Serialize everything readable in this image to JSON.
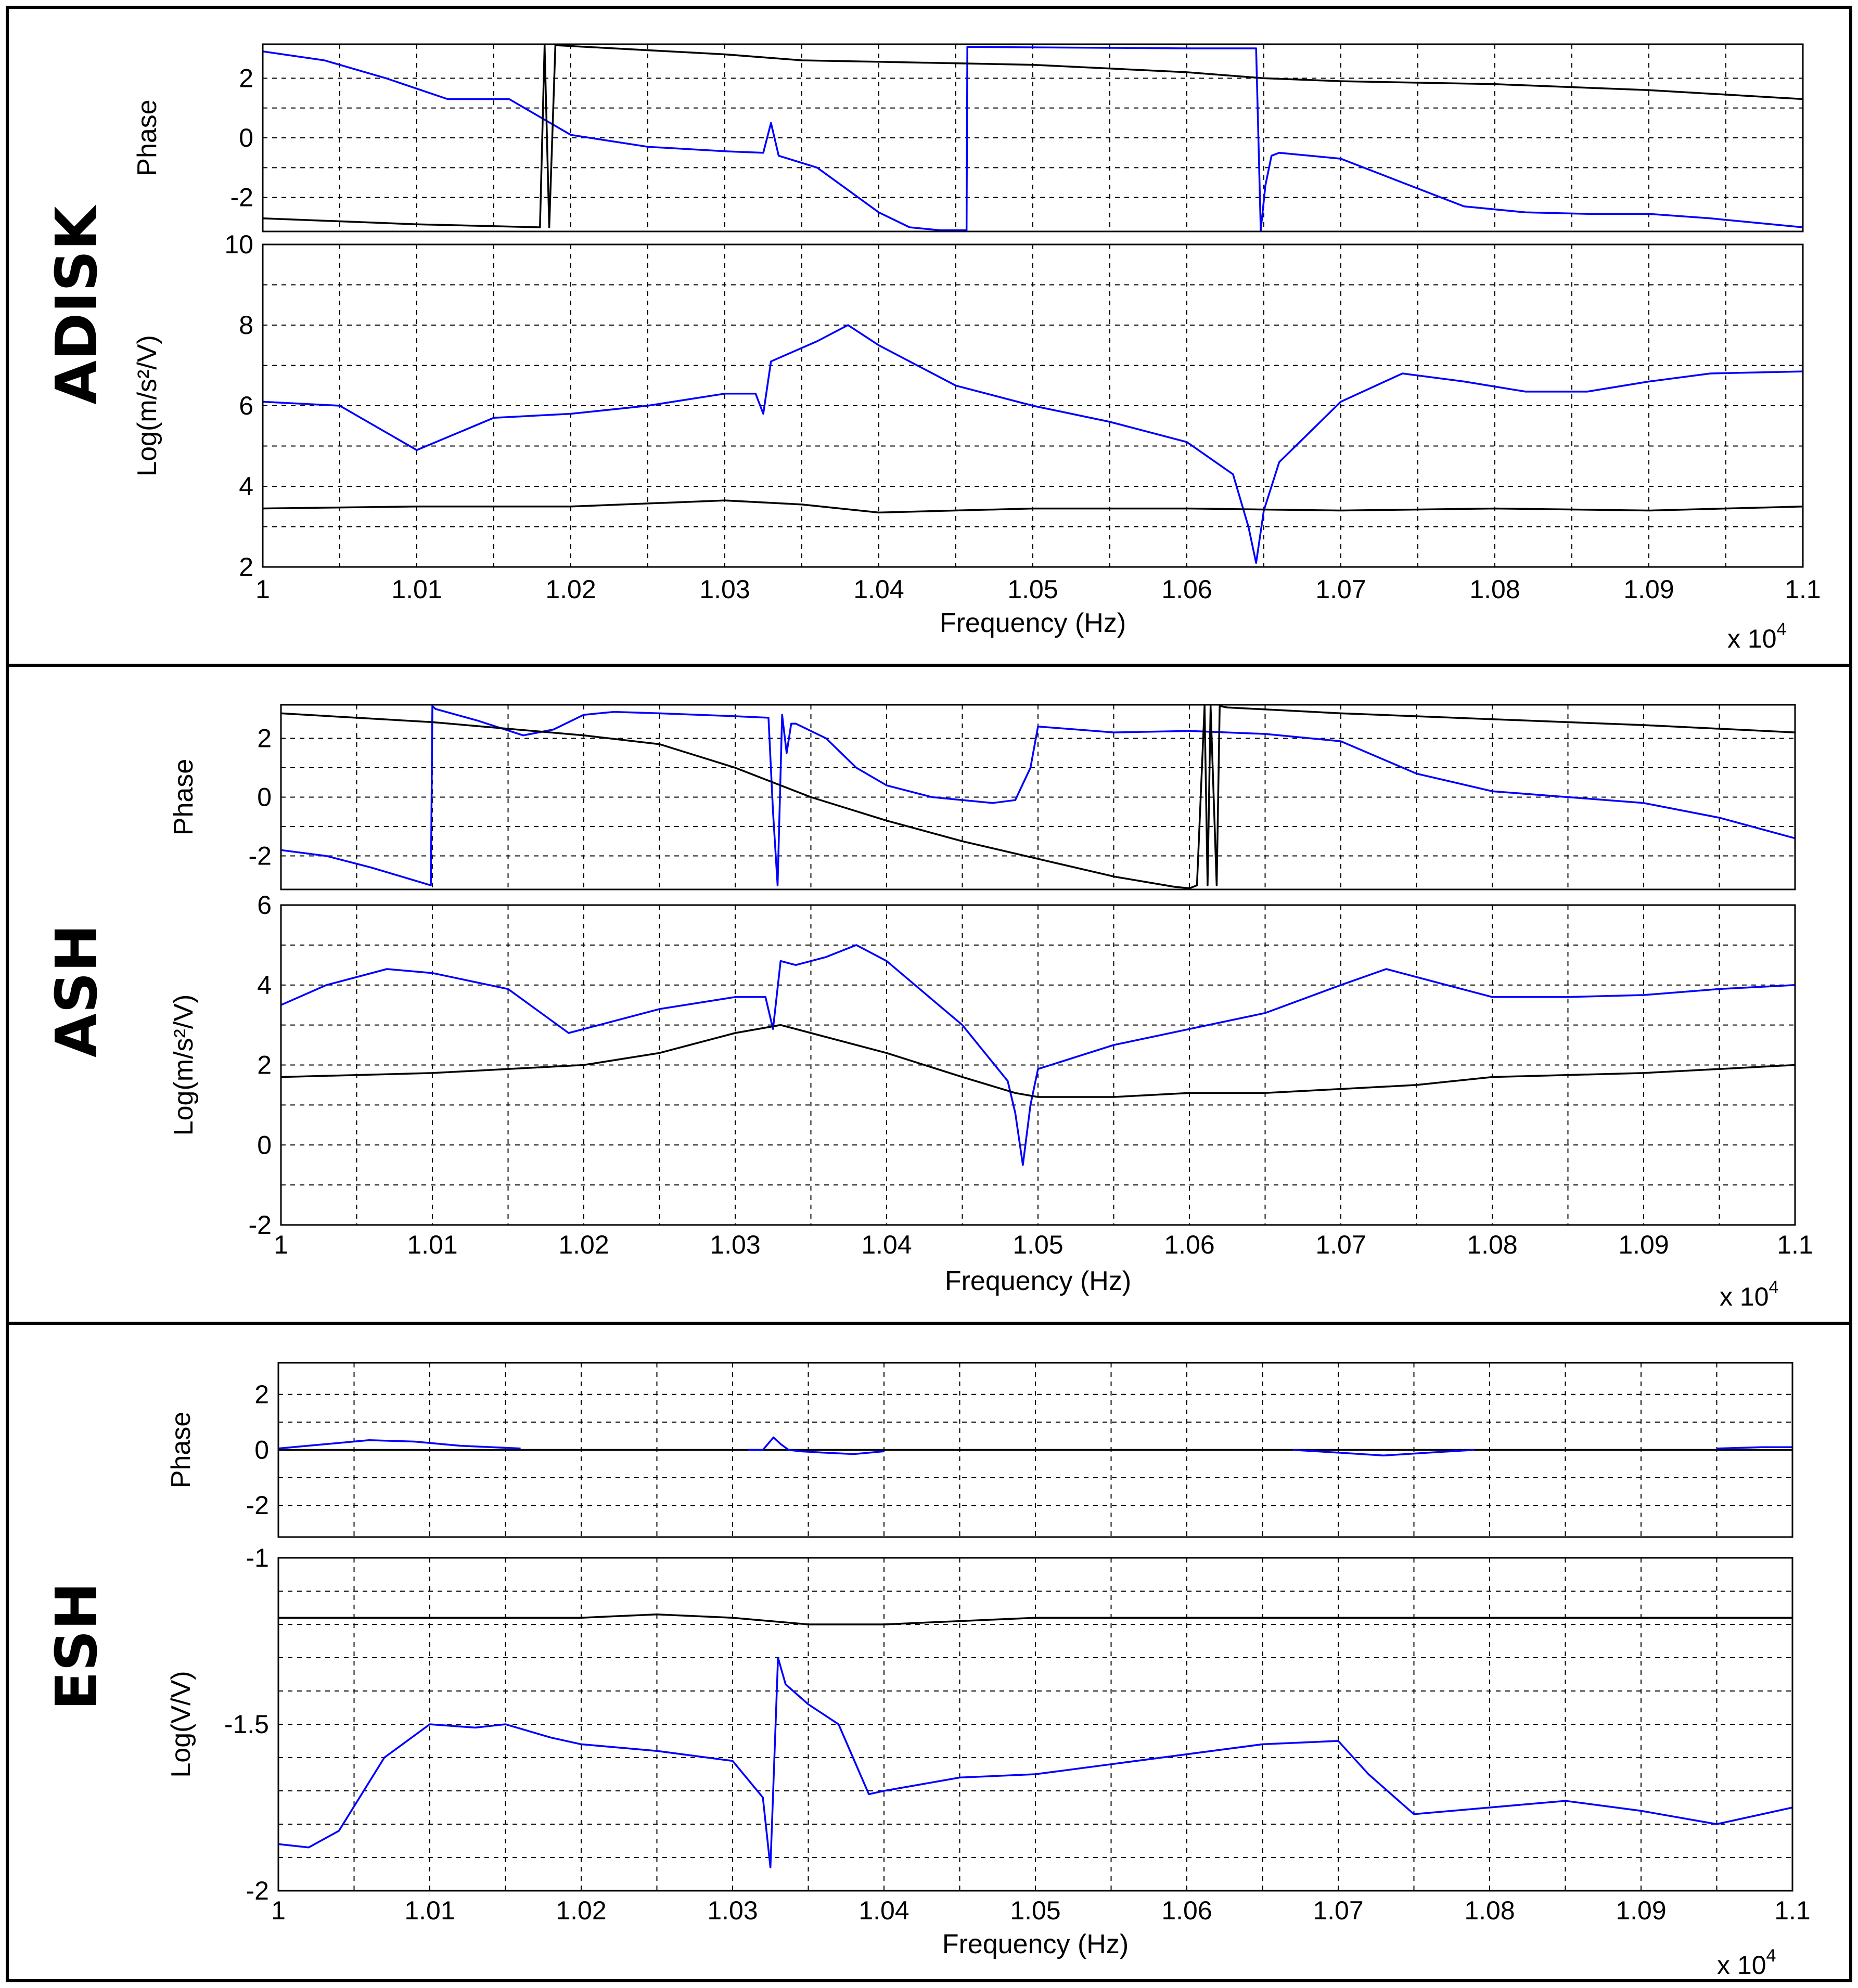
{
  "chart_data": [
    {
      "type": "line",
      "panel": "ADISK",
      "xlabel": "Frequency (Hz)",
      "x_multiplier": "x 10",
      "x_multiplier_exp": "4",
      "xlim": [
        1.0,
        1.1
      ],
      "xticks": [
        "1",
        "1.01",
        "1.02",
        "1.03",
        "1.04",
        "1.05",
        "1.06",
        "1.07",
        "1.08",
        "1.09",
        "1.1"
      ],
      "phase": {
        "ylabel": "Phase",
        "ylim": [
          -3.14,
          3.14
        ],
        "yticks": [
          "2",
          "0",
          "-2"
        ],
        "series": [
          {
            "name": "blue",
            "color": "#0000ff",
            "x": [
              1.0,
              1.004,
              1.008,
              1.012,
              1.016,
              1.02,
              1.025,
              1.03,
              1.0325,
              1.033,
              1.0335,
              1.036,
              1.04,
              1.042,
              1.044,
              1.0457,
              1.04575,
              1.0458,
              1.046,
              1.06,
              1.0645,
              1.0648,
              1.0651,
              1.0655,
              1.066,
              1.07,
              1.074,
              1.078,
              1.082,
              1.086,
              1.09,
              1.094,
              1.098,
              1.1
            ],
            "y": [
              2.9,
              2.6,
              2.0,
              1.3,
              1.3,
              0.1,
              -0.3,
              -0.45,
              -0.5,
              0.5,
              -0.6,
              -1.0,
              -2.5,
              -3.0,
              -3.1,
              -3.1,
              3.05,
              3.05,
              3.05,
              3.0,
              3.0,
              -3.1,
              -1.6,
              -0.6,
              -0.5,
              -0.7,
              -1.5,
              -2.3,
              -2.5,
              -2.55,
              -2.55,
              -2.7,
              -2.9,
              -3.0
            ]
          },
          {
            "name": "black",
            "color": "#000000",
            "x": [
              1.0,
              1.01,
              1.018,
              1.0183,
              1.0186,
              1.019,
              1.0192,
              1.03,
              1.035,
              1.04,
              1.05,
              1.06,
              1.065,
              1.07,
              1.08,
              1.09,
              1.1
            ],
            "y": [
              -2.7,
              -2.9,
              -3.0,
              3.1,
              -3.0,
              3.1,
              3.1,
              2.8,
              2.6,
              2.55,
              2.45,
              2.2,
              2.0,
              1.9,
              1.8,
              1.6,
              1.3
            ]
          }
        ]
      },
      "magnitude": {
        "ylabel": "Log(m/s²/V)",
        "ylim": [
          2,
          10
        ],
        "yticks": [
          "10",
          "8",
          "6",
          "4",
          "2"
        ],
        "series": [
          {
            "name": "blue",
            "color": "#0000ff",
            "x": [
              1.0,
              1.005,
              1.01,
              1.015,
              1.02,
              1.025,
              1.03,
              1.032,
              1.0325,
              1.033,
              1.036,
              1.038,
              1.04,
              1.045,
              1.05,
              1.055,
              1.06,
              1.063,
              1.064,
              1.0645,
              1.065,
              1.066,
              1.07,
              1.074,
              1.078,
              1.082,
              1.086,
              1.09,
              1.094,
              1.1
            ],
            "y": [
              6.1,
              6.0,
              4.9,
              5.7,
              5.8,
              6.0,
              6.3,
              6.3,
              5.8,
              7.1,
              7.6,
              8.0,
              7.5,
              6.5,
              6.0,
              5.6,
              5.1,
              4.3,
              3.0,
              2.1,
              3.4,
              4.6,
              6.1,
              6.8,
              6.6,
              6.35,
              6.35,
              6.6,
              6.8,
              6.85
            ]
          },
          {
            "name": "black",
            "color": "#000000",
            "x": [
              1.0,
              1.01,
              1.02,
              1.03,
              1.035,
              1.04,
              1.05,
              1.06,
              1.07,
              1.08,
              1.09,
              1.1
            ],
            "y": [
              3.45,
              3.5,
              3.5,
              3.65,
              3.55,
              3.35,
              3.45,
              3.45,
              3.4,
              3.45,
              3.4,
              3.5
            ]
          }
        ]
      }
    },
    {
      "type": "line",
      "panel": "ASH",
      "xlabel": "Frequency (Hz)",
      "x_multiplier": "x 10",
      "x_multiplier_exp": "4",
      "xlim": [
        1.0,
        1.1
      ],
      "xticks": [
        "1",
        "1.01",
        "1.02",
        "1.03",
        "1.04",
        "1.05",
        "1.06",
        "1.07",
        "1.08",
        "1.09",
        "1.1"
      ],
      "phase": {
        "ylabel": "Phase",
        "ylim": [
          -3.14,
          3.14
        ],
        "yticks": [
          "2",
          "0",
          "-2"
        ],
        "series": [
          {
            "name": "blue",
            "color": "#0000ff",
            "x": [
              1.0,
              1.003,
              1.006,
              1.0099,
              1.01,
              1.0102,
              1.013,
              1.016,
              1.018,
              1.02,
              1.022,
              1.025,
              1.03,
              1.0322,
              1.0325,
              1.0328,
              1.0331,
              1.0334,
              1.0337,
              1.034,
              1.036,
              1.038,
              1.04,
              1.043,
              1.047,
              1.0485,
              1.0495,
              1.05,
              1.055,
              1.06,
              1.065,
              1.07,
              1.075,
              1.08,
              1.085,
              1.09,
              1.095,
              1.1
            ],
            "y": [
              -1.8,
              -2.0,
              -2.4,
              -3.0,
              3.1,
              3.0,
              2.6,
              2.1,
              2.3,
              2.8,
              2.9,
              2.85,
              2.75,
              2.7,
              -0.5,
              -3.0,
              2.8,
              1.5,
              2.5,
              2.5,
              2.0,
              1.0,
              0.4,
              0.0,
              -0.2,
              -0.1,
              1.0,
              2.4,
              2.2,
              2.25,
              2.15,
              1.9,
              0.8,
              0.2,
              0.0,
              -0.2,
              -0.7,
              -1.4
            ]
          },
          {
            "name": "black",
            "color": "#000000",
            "x": [
              1.0,
              1.01,
              1.02,
              1.025,
              1.03,
              1.035,
              1.04,
              1.045,
              1.05,
              1.055,
              1.059,
              1.06,
              1.0605,
              1.061,
              1.0612,
              1.0614,
              1.0618,
              1.062,
              1.0625,
              1.07,
              1.08,
              1.09,
              1.1
            ],
            "y": [
              2.85,
              2.55,
              2.1,
              1.8,
              1.0,
              0.0,
              -0.8,
              -1.5,
              -2.1,
              -2.7,
              -3.05,
              -3.1,
              -3.0,
              3.1,
              -3.0,
              3.1,
              -3.0,
              3.1,
              3.05,
              2.85,
              2.65,
              2.45,
              2.2
            ]
          }
        ]
      },
      "magnitude": {
        "ylabel": "Log(m/s²/V)",
        "ylim": [
          -2,
          6
        ],
        "yticks": [
          "6",
          "4",
          "2",
          "0",
          "-2"
        ],
        "series": [
          {
            "name": "blue",
            "color": "#0000ff",
            "x": [
              1.0,
              1.003,
              1.007,
              1.01,
              1.015,
              1.019,
              1.02,
              1.025,
              1.03,
              1.032,
              1.0325,
              1.033,
              1.034,
              1.036,
              1.038,
              1.04,
              1.045,
              1.048,
              1.0485,
              1.049,
              1.0495,
              1.05,
              1.055,
              1.06,
              1.065,
              1.07,
              1.073,
              1.077,
              1.08,
              1.085,
              1.09,
              1.095,
              1.1
            ],
            "y": [
              3.5,
              4.0,
              4.4,
              4.3,
              3.9,
              2.8,
              2.9,
              3.4,
              3.7,
              3.7,
              2.9,
              4.6,
              4.5,
              4.7,
              5.0,
              4.6,
              3.0,
              1.6,
              0.8,
              -0.5,
              1.0,
              1.9,
              2.5,
              2.9,
              3.3,
              4.0,
              4.4,
              4.0,
              3.7,
              3.7,
              3.75,
              3.9,
              4.0
            ]
          },
          {
            "name": "black",
            "color": "#000000",
            "x": [
              1.0,
              1.01,
              1.02,
              1.025,
              1.03,
              1.033,
              1.035,
              1.04,
              1.045,
              1.0485,
              1.05,
              1.055,
              1.06,
              1.065,
              1.07,
              1.075,
              1.08,
              1.09,
              1.1
            ],
            "y": [
              1.7,
              1.8,
              2.0,
              2.3,
              2.8,
              3.0,
              2.8,
              2.3,
              1.7,
              1.3,
              1.2,
              1.2,
              1.3,
              1.3,
              1.4,
              1.5,
              1.7,
              1.8,
              2.0
            ]
          }
        ]
      }
    },
    {
      "type": "line",
      "panel": "ESH",
      "xlabel": "Frequency (Hz)",
      "x_multiplier": "x 10",
      "x_multiplier_exp": "4",
      "xlim": [
        1.0,
        1.1
      ],
      "xticks": [
        "1",
        "1.01",
        "1.02",
        "1.03",
        "1.04",
        "1.05",
        "1.06",
        "1.07",
        "1.08",
        "1.09",
        "1.1"
      ],
      "phase": {
        "ylabel": "Phase",
        "ylim": [
          -3.14,
          3.14
        ],
        "yticks": [
          "2",
          "0",
          "-2"
        ],
        "series": [
          {
            "name": "black",
            "color": "#000000",
            "x": [
              1.0,
              1.1
            ],
            "y": [
              0,
              0
            ]
          },
          {
            "name": "blue",
            "color": "#0000ff",
            "x": [
              1.0,
              1.003,
              1.006,
              1.009,
              1.012,
              1.016
            ],
            "y": [
              0.05,
              0.2,
              0.35,
              0.3,
              0.15,
              0.05
            ]
          },
          {
            "name": "blue",
            "color": "#0000ff",
            "x": [
              1.031,
              1.032,
              1.0327,
              1.0332,
              1.0337,
              1.0345,
              1.036,
              1.038,
              1.04
            ],
            "y": [
              0.0,
              0.0,
              0.45,
              0.2,
              0.0,
              -0.05,
              -0.1,
              -0.15,
              -0.05
            ]
          },
          {
            "name": "blue",
            "color": "#0000ff",
            "x": [
              1.067,
              1.07,
              1.073,
              1.076,
              1.079
            ],
            "y": [
              0.0,
              -0.1,
              -0.2,
              -0.1,
              0.0
            ]
          },
          {
            "name": "blue",
            "color": "#0000ff",
            "x": [
              1.095,
              1.098,
              1.1
            ],
            "y": [
              0.05,
              0.1,
              0.1
            ]
          }
        ]
      },
      "magnitude": {
        "ylabel": "Log(V/V)",
        "ylim": [
          -2,
          -1
        ],
        "yticks": [
          "-1",
          "-1.5",
          "-2"
        ],
        "series": [
          {
            "name": "blue",
            "color": "#0000ff",
            "x": [
              1.0,
              1.002,
              1.004,
              1.007,
              1.01,
              1.013,
              1.015,
              1.018,
              1.02,
              1.025,
              1.03,
              1.032,
              1.0325,
              1.033,
              1.0335,
              1.035,
              1.037,
              1.039,
              1.04,
              1.045,
              1.05,
              1.055,
              1.06,
              1.065,
              1.07,
              1.072,
              1.075,
              1.08,
              1.085,
              1.09,
              1.095,
              1.1
            ],
            "y": [
              -1.86,
              -1.87,
              -1.82,
              -1.6,
              -1.5,
              -1.51,
              -1.5,
              -1.54,
              -1.56,
              -1.58,
              -1.61,
              -1.72,
              -1.93,
              -1.3,
              -1.38,
              -1.44,
              -1.5,
              -1.71,
              -1.7,
              -1.66,
              -1.65,
              -1.62,
              -1.59,
              -1.56,
              -1.55,
              -1.65,
              -1.77,
              -1.75,
              -1.73,
              -1.76,
              -1.8,
              -1.75
            ]
          },
          {
            "name": "black",
            "color": "#000000",
            "x": [
              1.0,
              1.01,
              1.02,
              1.025,
              1.03,
              1.035,
              1.04,
              1.045,
              1.05,
              1.06,
              1.07,
              1.08,
              1.09,
              1.1
            ],
            "y": [
              -1.18,
              -1.18,
              -1.18,
              -1.17,
              -1.18,
              -1.2,
              -1.2,
              -1.19,
              -1.18,
              -1.18,
              -1.18,
              -1.18,
              -1.18,
              -1.18
            ]
          }
        ]
      }
    }
  ]
}
